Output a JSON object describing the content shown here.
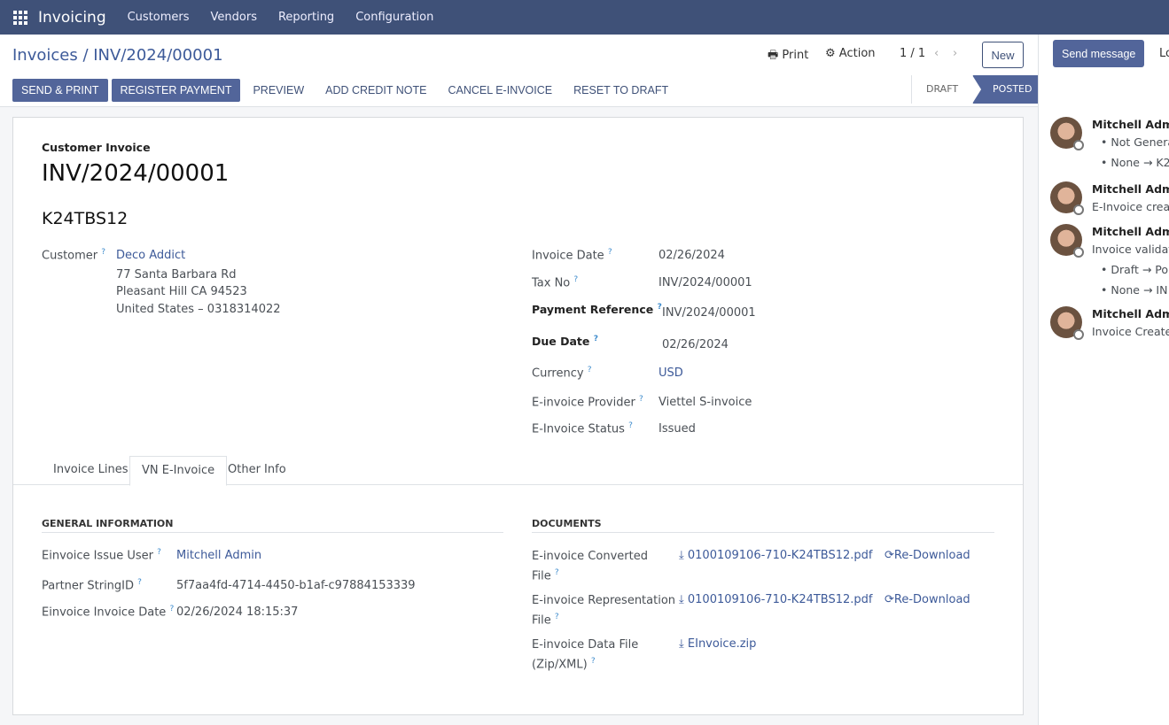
{
  "nav": {
    "app": "Invoicing",
    "menu": [
      "Customers",
      "Vendors",
      "Reporting",
      "Configuration"
    ]
  },
  "breadcrumb": {
    "parent": "Invoices",
    "current": "INV/2024/00001"
  },
  "toolbar": {
    "print": "Print",
    "action": "Action",
    "pager": "1 / 1",
    "new": "New"
  },
  "buttons": {
    "send_print": "SEND & PRINT",
    "register_payment": "REGISTER PAYMENT",
    "preview": "PREVIEW",
    "add_credit_note": "ADD CREDIT NOTE",
    "cancel_einvoice": "CANCEL E-INVOICE",
    "reset_draft": "RESET TO DRAFT"
  },
  "status": {
    "draft": "DRAFT",
    "posted": "POSTED",
    "current": "POSTED"
  },
  "form": {
    "type": "Customer Invoice",
    "number": "INV/2024/00001",
    "ref": "K24TBS12",
    "customer_label": "Customer",
    "customer": "Deco Addict",
    "addr1": "77 Santa Barbara Rd",
    "addr2": "Pleasant Hill CA 94523",
    "addr3": "United States – 0318314022",
    "fields": [
      {
        "label": "Invoice Date",
        "value": "02/26/2024"
      },
      {
        "label": "Tax No",
        "value": "INV/2024/00001"
      },
      {
        "label": "Payment Reference",
        "value": "INV/2024/00001"
      },
      {
        "label": "Due Date",
        "value": "02/26/2024"
      },
      {
        "label": "Currency",
        "value": "USD"
      },
      {
        "label": "E-invoice Provider",
        "value": "Viettel S-invoice"
      },
      {
        "label": "E-Invoice Status",
        "value": "Issued"
      }
    ]
  },
  "tabs": [
    "Invoice Lines",
    "VN E-Invoice",
    "Other Info"
  ],
  "general": {
    "title": "GENERAL INFORMATION",
    "rows": [
      {
        "label": "Einvoice Issue User",
        "value": "Mitchell Admin"
      },
      {
        "label": "Partner StringID",
        "value": "5f7aa4fd-4714-4450-b1af-c97884153339"
      },
      {
        "label": "Einvoice Invoice Date",
        "value": "02/26/2024 18:15:37"
      }
    ]
  },
  "documents": {
    "title": "DOCUMENTS",
    "redownload": "Re-Download",
    "rows": [
      {
        "label1": "E-invoice Converted",
        "label2": "File",
        "file": "0100109106-710-K24TBS12.pdf"
      },
      {
        "label1": "E-invoice Representation",
        "label2": "File",
        "file": "0100109106-710-K24TBS12.pdf"
      },
      {
        "label1": "E-invoice Data File",
        "label2": "(Zip/XML)",
        "file": "EInvoice.zip"
      }
    ]
  },
  "chatter": {
    "send_message": "Send message",
    "log": "Lo",
    "messages": [
      {
        "author": "Mitchell Admin",
        "lines": [
          "Not Genera",
          "None → K2"
        ]
      },
      {
        "author": "Mitchell Admin",
        "lines": [
          "E-Invoice create"
        ]
      },
      {
        "author": "Mitchell Admin",
        "lines": [
          "Invoice validate",
          "Draft → Po",
          "None → IN"
        ]
      },
      {
        "author": "Mitchell Admin",
        "lines": [
          "Invoice Created"
        ]
      }
    ]
  }
}
